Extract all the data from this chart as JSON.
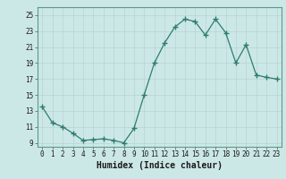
{
  "x": [
    0,
    1,
    2,
    3,
    4,
    5,
    6,
    7,
    8,
    9,
    10,
    11,
    12,
    13,
    14,
    15,
    16,
    17,
    18,
    19,
    20,
    21,
    22,
    23
  ],
  "y": [
    13.5,
    11.5,
    11.0,
    10.2,
    9.3,
    9.4,
    9.5,
    9.3,
    9.0,
    10.8,
    15.0,
    19.0,
    21.5,
    23.5,
    24.5,
    24.2,
    22.5,
    24.5,
    22.8,
    19.0,
    21.3,
    17.5,
    17.2,
    17.0
  ],
  "line_color": "#2e7d6e",
  "marker": "+",
  "marker_color": "#2e7d6e",
  "bg_color": "#cce8e6",
  "grid_color": "#b8d4d2",
  "xlabel": "Humidex (Indice chaleur)",
  "xlim": [
    -0.5,
    23.5
  ],
  "ylim": [
    8.5,
    26
  ],
  "yticks": [
    9,
    11,
    13,
    15,
    17,
    19,
    21,
    23,
    25
  ],
  "xticks": [
    0,
    1,
    2,
    3,
    4,
    5,
    6,
    7,
    8,
    9,
    10,
    11,
    12,
    13,
    14,
    15,
    16,
    17,
    18,
    19,
    20,
    21,
    22,
    23
  ],
  "tick_fontsize": 5.5,
  "label_fontsize": 7
}
